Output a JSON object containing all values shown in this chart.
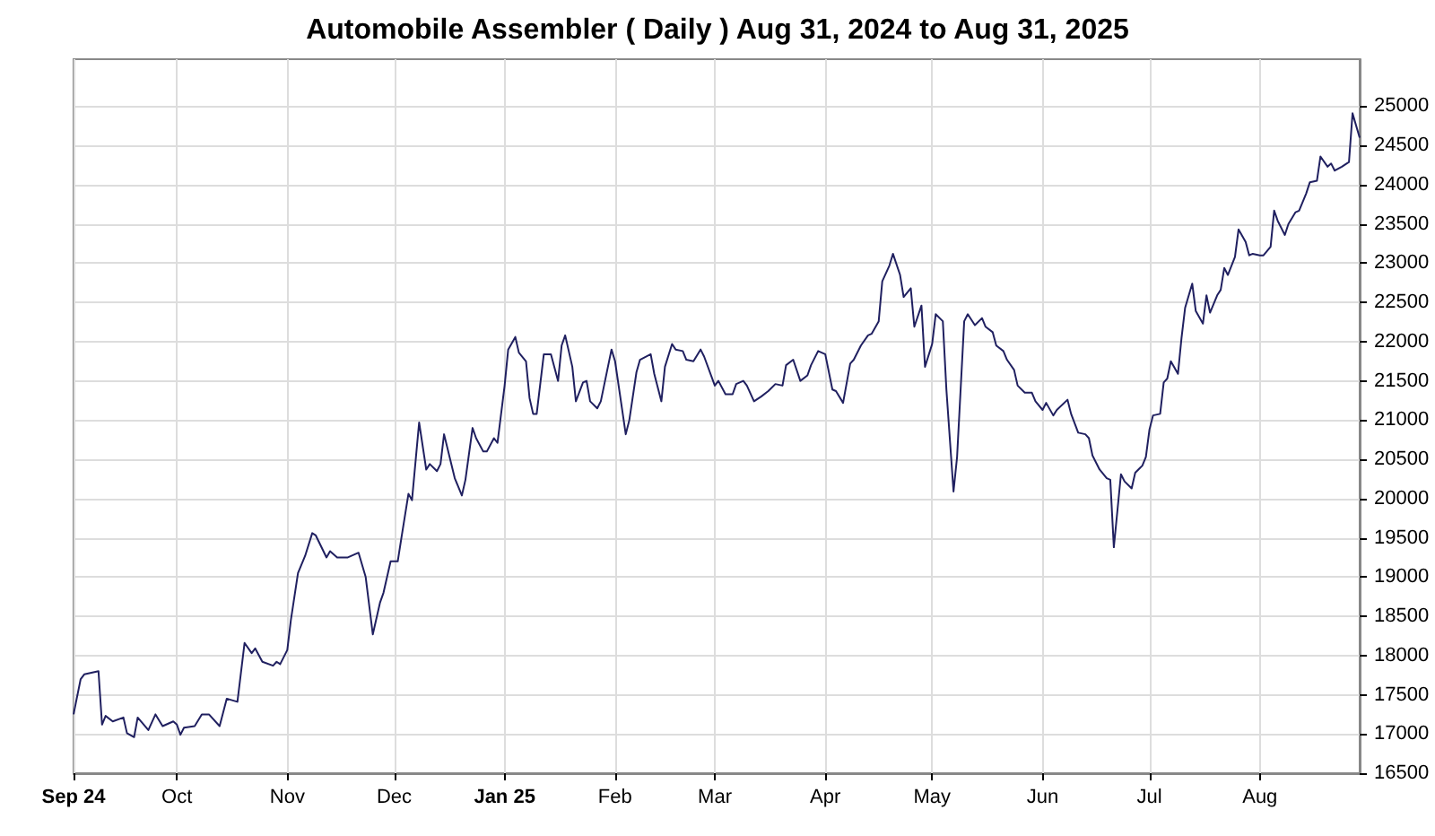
{
  "chart_data": {
    "type": "line",
    "title": "Automobile Assembler ( Daily ) Aug 31, 2024 to Aug 31, 2025",
    "x": [
      "2024-09-02",
      "2024-09-04",
      "2024-09-05",
      "2024-09-09",
      "2024-09-10",
      "2024-09-11",
      "2024-09-13",
      "2024-09-16",
      "2024-09-17",
      "2024-09-19",
      "2024-09-20",
      "2024-09-23",
      "2024-09-25",
      "2024-09-27",
      "2024-09-30",
      "2024-10-01",
      "2024-10-02",
      "2024-10-03",
      "2024-10-06",
      "2024-10-08",
      "2024-10-10",
      "2024-10-13",
      "2024-10-15",
      "2024-10-18",
      "2024-10-20",
      "2024-10-22",
      "2024-10-23",
      "2024-10-25",
      "2024-10-28",
      "2024-10-29",
      "2024-10-30",
      "2024-11-01",
      "2024-11-02",
      "2024-11-04",
      "2024-11-06",
      "2024-11-08",
      "2024-11-09",
      "2024-11-12",
      "2024-11-13",
      "2024-11-15",
      "2024-11-18",
      "2024-11-21",
      "2024-11-23",
      "2024-11-25",
      "2024-11-27",
      "2024-11-28",
      "2024-11-30",
      "2024-12-02",
      "2024-12-03",
      "2024-12-05",
      "2024-12-06",
      "2024-12-08",
      "2024-12-10",
      "2024-12-11",
      "2024-12-13",
      "2024-12-14",
      "2024-12-15",
      "2024-12-18",
      "2024-12-20",
      "2024-12-21",
      "2024-12-23",
      "2024-12-24",
      "2024-12-26",
      "2024-12-27",
      "2024-12-29",
      "2024-12-30",
      "2025-01-01",
      "2025-01-02",
      "2025-01-04",
      "2025-01-05",
      "2025-01-07",
      "2025-01-08",
      "2025-01-09",
      "2025-01-10",
      "2025-01-12",
      "2025-01-14",
      "2025-01-16",
      "2025-01-17",
      "2025-01-18",
      "2025-01-20",
      "2025-01-21",
      "2025-01-23",
      "2025-01-24",
      "2025-01-25",
      "2025-01-27",
      "2025-01-28",
      "2025-01-31",
      "2025-02-01",
      "2025-02-02",
      "2025-02-04",
      "2025-02-05",
      "2025-02-07",
      "2025-02-08",
      "2025-02-11",
      "2025-02-12",
      "2025-02-14",
      "2025-02-15",
      "2025-02-17",
      "2025-02-18",
      "2025-02-20",
      "2025-02-21",
      "2025-02-23",
      "2025-02-25",
      "2025-02-26",
      "2025-03-01",
      "2025-03-02",
      "2025-03-04",
      "2025-03-06",
      "2025-03-07",
      "2025-03-09",
      "2025-03-10",
      "2025-03-12",
      "2025-03-14",
      "2025-03-16",
      "2025-03-18",
      "2025-03-20",
      "2025-03-21",
      "2025-03-23",
      "2025-03-25",
      "2025-03-27",
      "2025-03-28",
      "2025-03-30",
      "2025-04-01",
      "2025-04-03",
      "2025-04-04",
      "2025-04-06",
      "2025-04-08",
      "2025-04-09",
      "2025-04-11",
      "2025-04-13",
      "2025-04-14",
      "2025-04-16",
      "2025-04-17",
      "2025-04-19",
      "2025-04-20",
      "2025-04-22",
      "2025-04-23",
      "2025-04-25",
      "2025-04-26",
      "2025-04-28",
      "2025-04-29",
      "2025-05-01",
      "2025-05-02",
      "2025-05-04",
      "2025-05-05",
      "2025-05-07",
      "2025-05-08",
      "2025-05-10",
      "2025-05-11",
      "2025-05-13",
      "2025-05-15",
      "2025-05-16",
      "2025-05-18",
      "2025-05-19",
      "2025-05-21",
      "2025-05-22",
      "2025-05-24",
      "2025-05-25",
      "2025-05-27",
      "2025-05-29",
      "2025-05-30",
      "2025-06-01",
      "2025-06-02",
      "2025-06-04",
      "2025-06-05",
      "2025-06-08",
      "2025-06-09",
      "2025-06-11",
      "2025-06-13",
      "2025-06-14",
      "2025-06-15",
      "2025-06-17",
      "2025-06-19",
      "2025-06-20",
      "2025-06-21",
      "2025-06-23",
      "2025-06-24",
      "2025-06-26",
      "2025-06-27",
      "2025-06-29",
      "2025-06-30",
      "2025-07-01",
      "2025-07-02",
      "2025-07-04",
      "2025-07-05",
      "2025-07-06",
      "2025-07-07",
      "2025-07-09",
      "2025-07-10",
      "2025-07-11",
      "2025-07-13",
      "2025-07-14",
      "2025-07-16",
      "2025-07-17",
      "2025-07-18",
      "2025-07-20",
      "2025-07-21",
      "2025-07-22",
      "2025-07-23",
      "2025-07-25",
      "2025-07-26",
      "2025-07-28",
      "2025-07-29",
      "2025-07-30",
      "2025-08-01",
      "2025-08-02",
      "2025-08-04",
      "2025-08-05",
      "2025-08-06",
      "2025-08-08",
      "2025-08-09",
      "2025-08-11",
      "2025-08-12",
      "2025-08-14",
      "2025-08-15",
      "2025-08-17",
      "2025-08-18",
      "2025-08-20",
      "2025-08-21",
      "2025-08-22",
      "2025-08-24",
      "2025-08-26",
      "2025-08-27",
      "2025-08-29"
    ],
    "series": [
      {
        "color": "#202060",
        "values": [
          17250,
          17700,
          17760,
          17800,
          17120,
          17230,
          17160,
          17210,
          17010,
          16960,
          17210,
          17050,
          17250,
          17100,
          17160,
          17120,
          16990,
          17080,
          17100,
          17250,
          17250,
          17100,
          17450,
          17410,
          18160,
          18030,
          18090,
          17920,
          17870,
          17920,
          17890,
          18070,
          18450,
          19050,
          19270,
          19560,
          19530,
          19250,
          19330,
          19250,
          19250,
          19310,
          19000,
          18270,
          18670,
          18800,
          19200,
          19200,
          19490,
          20060,
          19980,
          20970,
          20370,
          20440,
          20350,
          20440,
          20820,
          20260,
          20040,
          20240,
          20900,
          20770,
          20600,
          20600,
          20770,
          20710,
          21440,
          21900,
          22060,
          21860,
          21750,
          21280,
          21080,
          21080,
          21840,
          21840,
          21500,
          21950,
          22080,
          21680,
          21240,
          21480,
          21500,
          21240,
          21150,
          21240,
          21900,
          21750,
          21440,
          20820,
          21000,
          21610,
          21770,
          21840,
          21590,
          21240,
          21680,
          21970,
          21900,
          21880,
          21770,
          21750,
          21900,
          21810,
          21440,
          21500,
          21330,
          21330,
          21460,
          21500,
          21440,
          21240,
          21300,
          21370,
          21460,
          21440,
          21700,
          21770,
          21500,
          21570,
          21700,
          21880,
          21840,
          21390,
          21370,
          21220,
          21720,
          21770,
          21950,
          22080,
          22100,
          22260,
          22770,
          22970,
          23120,
          22850,
          22570,
          22680,
          22190,
          22460,
          21680,
          21970,
          22350,
          22260,
          21390,
          20090,
          20530,
          22260,
          22350,
          22210,
          22300,
          22190,
          22120,
          21950,
          21880,
          21770,
          21640,
          21440,
          21350,
          21350,
          21240,
          21130,
          21220,
          21060,
          21130,
          21260,
          21080,
          20840,
          20820,
          20770,
          20550,
          20370,
          20260,
          20240,
          19380,
          20310,
          20220,
          20130,
          20330,
          20420,
          20530,
          20880,
          21060,
          21080,
          21480,
          21530,
          21750,
          21590,
          22050,
          22430,
          22740,
          22390,
          22230,
          22590,
          22370,
          22590,
          22660,
          22940,
          22850,
          23080,
          23430,
          23270,
          23100,
          23120,
          23100,
          23100,
          23210,
          23670,
          23540,
          23360,
          23500,
          23650,
          23670,
          23890,
          24030,
          24050,
          24360,
          24230,
          24270,
          24180,
          24230,
          24290,
          24910,
          24600
        ]
      }
    ],
    "xlim": [
      "2024-09-02",
      "2025-08-29"
    ],
    "xticks": [
      {
        "value": "2024-09-02",
        "label": "Sep 24"
      },
      {
        "value": "2024-10-01",
        "label": "Oct"
      },
      {
        "value": "2024-11-01",
        "label": "Nov"
      },
      {
        "value": "2024-12-01",
        "label": "Dec"
      },
      {
        "value": "2025-01-01",
        "label": "Jan 25"
      },
      {
        "value": "2025-02-01",
        "label": "Feb"
      },
      {
        "value": "2025-03-01",
        "label": "Mar"
      },
      {
        "value": "2025-04-01",
        "label": "Apr"
      },
      {
        "value": "2025-05-01",
        "label": "May"
      },
      {
        "value": "2025-06-01",
        "label": "Jun"
      },
      {
        "value": "2025-07-01",
        "label": "Jul"
      },
      {
        "value": "2025-08-01",
        "label": "Aug"
      }
    ],
    "ylim": [
      16500,
      25600
    ],
    "yticks": [
      16500,
      17000,
      17500,
      18000,
      18500,
      19000,
      19500,
      20000,
      20500,
      21000,
      21500,
      22000,
      22500,
      23000,
      23500,
      24000,
      24500,
      25000
    ],
    "grid": true,
    "marker": "none",
    "line_style": "solid"
  }
}
